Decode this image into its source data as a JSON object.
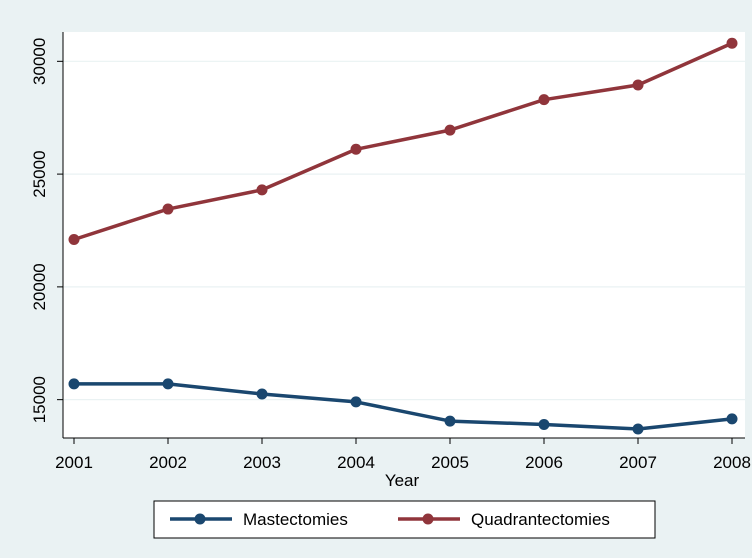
{
  "chart_data": {
    "type": "line",
    "x": [
      2001,
      2002,
      2003,
      2004,
      2005,
      2006,
      2007,
      2008
    ],
    "xticks": [
      "2001",
      "2002",
      "2003",
      "2004",
      "2005",
      "2006",
      "2007",
      "2008"
    ],
    "xlabel": "Year",
    "ylabel": "",
    "ylim": [
      13300,
      31300
    ],
    "yticks": [
      15000,
      20000,
      25000,
      30000
    ],
    "ytick_labels": [
      "15000",
      "20000",
      "25000",
      "30000"
    ],
    "grid": true,
    "legend_position": "bottom",
    "series": [
      {
        "name": "Mastectomies",
        "color": "#1a476f",
        "values": [
          15700,
          15700,
          15250,
          14900,
          14050,
          13900,
          13700,
          14150
        ]
      },
      {
        "name": "Quadrantectomies",
        "color": "#90353b",
        "values": [
          22100,
          23450,
          24300,
          26100,
          26950,
          28300,
          28950,
          30800
        ]
      }
    ]
  },
  "colors": {
    "outer_background": "#eaf2f3",
    "plot_background": "#ffffff",
    "grid": "#eaf2f3"
  }
}
